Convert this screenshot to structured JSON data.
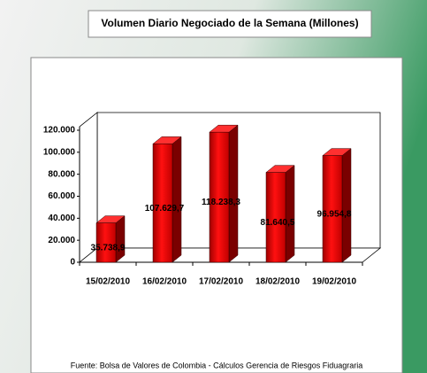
{
  "chart_data": {
    "type": "bar3d",
    "title": "Volumen Diario Negociado de la Semana  (Millones)",
    "categories": [
      "15/02/2010",
      "16/02/2010",
      "17/02/2010",
      "18/02/2010",
      "19/02/2010"
    ],
    "values": [
      35738.9,
      107629.7,
      118238.3,
      81640.5,
      96954.8
    ],
    "value_labels": [
      "35.738,9",
      "107.629,7",
      "118.238,3",
      "81.640,5",
      "96.954,8"
    ],
    "color": "#e00000",
    "ylim": [
      0,
      120000
    ],
    "yticks": [
      0,
      {
        "value": 20000,
        "label": "20.000"
      },
      {
        "value": 40000,
        "label": "40.000"
      },
      {
        "value": 60000,
        "label": "60.000"
      },
      {
        "value": 80000,
        "label": "80.000"
      },
      {
        "value": 100000,
        "label": "100.000"
      },
      {
        "value": 120000,
        "label": "120.000"
      }
    ],
    "grid": false,
    "source": "Fuente: Bolsa de Valores de Colombia - Cálculos Gerencia de Riesgos Fiduagraria"
  }
}
